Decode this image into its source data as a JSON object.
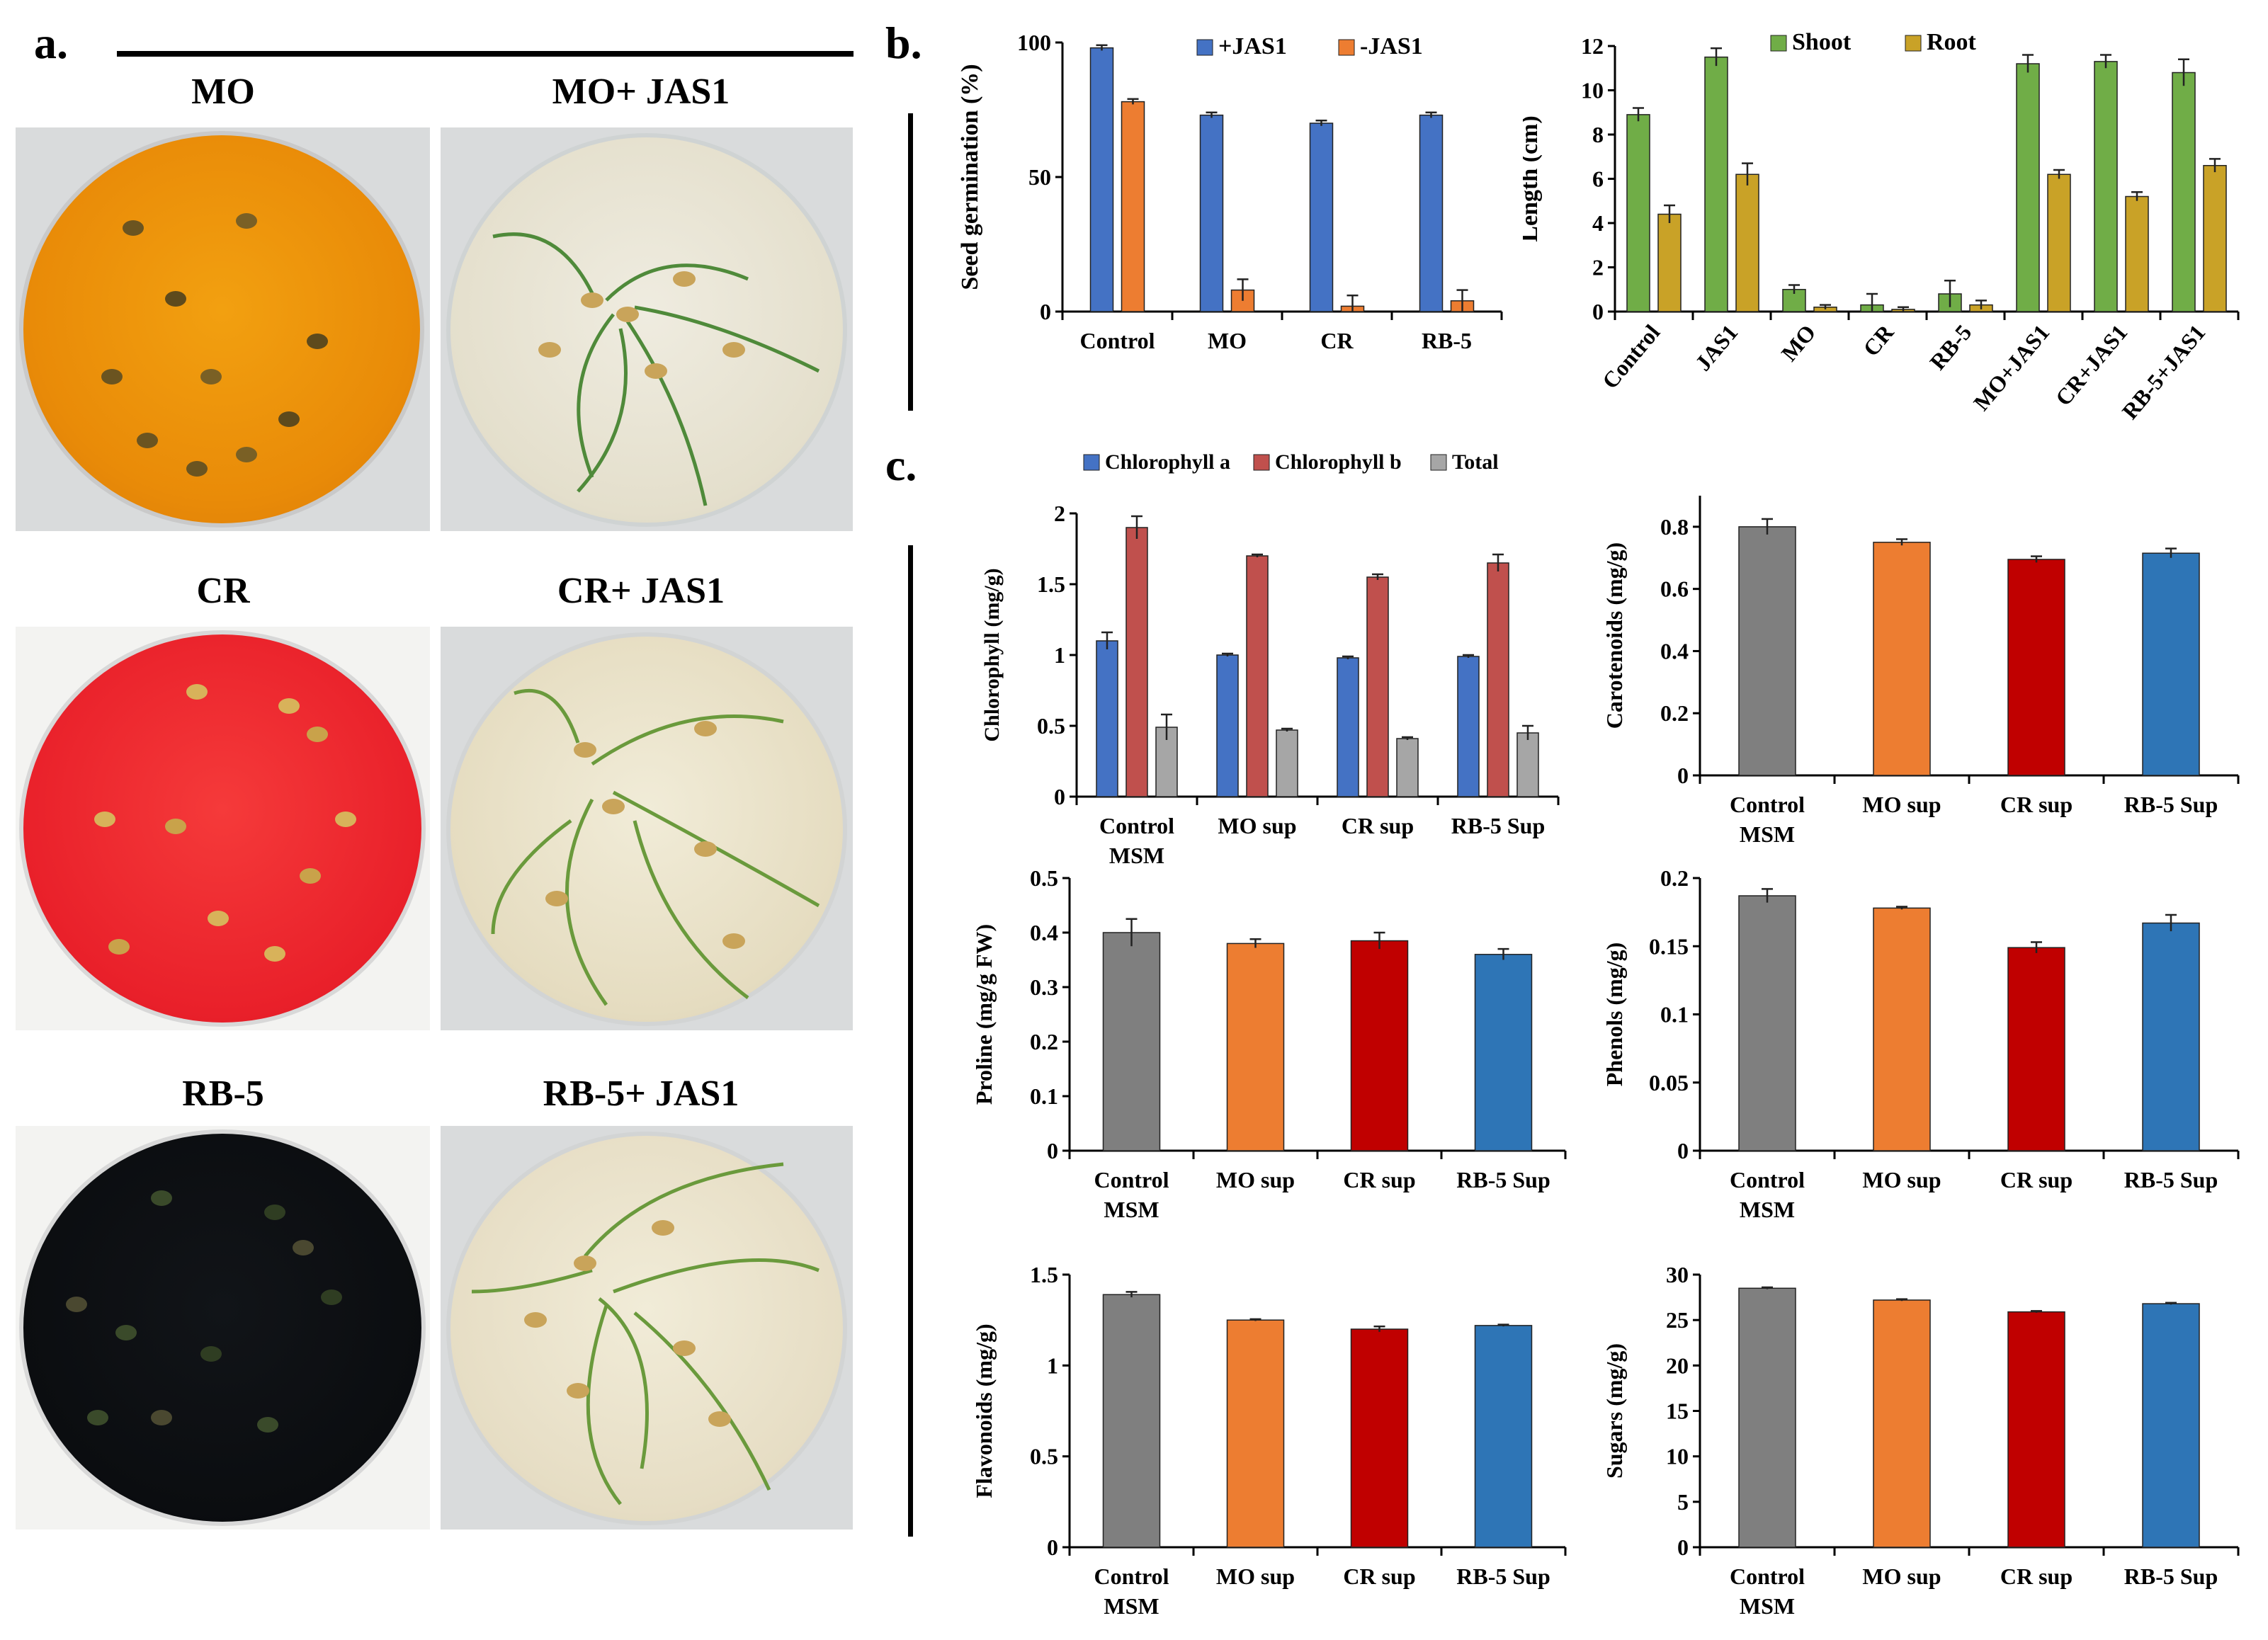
{
  "panel_a": {
    "letter": "a.",
    "labels": [
      "MO",
      "MO+ JAS1",
      "CR",
      "CR+ JAS1",
      "RB-5",
      "RB-5+ JAS1"
    ]
  },
  "panel_b": {
    "letter": "b."
  },
  "panel_c": {
    "letter": "c."
  },
  "colors": {
    "blue": "#4472c4",
    "orange": "#ed7d31",
    "green": "#70ad47",
    "gold": "#c9a227",
    "gray": "#7f7f7f",
    "red": "#c00000",
    "steelblue": "#2e75b6",
    "rose": "#c0504d",
    "silver": "#a6a6a6"
  },
  "chart_data": [
    {
      "id": "germination",
      "type": "bar",
      "ylabel": "Seed germination (%)",
      "ylim": [
        0,
        100
      ],
      "yticks": [
        "0",
        "50",
        "100"
      ],
      "categories": [
        "Control",
        "MO",
        "CR",
        "RB-5"
      ],
      "legend": "top",
      "series": [
        {
          "name": "+JAS1",
          "color": "#4472c4",
          "values": [
            98,
            73,
            70,
            73
          ],
          "errors": [
            1,
            1,
            1,
            1
          ]
        },
        {
          "name": "-JAS1",
          "color": "#ed7d31",
          "values": [
            78,
            8,
            2,
            4
          ],
          "errors": [
            1,
            4,
            4,
            4
          ]
        }
      ]
    },
    {
      "id": "length",
      "type": "bar",
      "ylabel": "Length (cm)",
      "ylim": [
        0,
        12
      ],
      "yticks": [
        "0",
        "2",
        "4",
        "6",
        "8",
        "10",
        "12"
      ],
      "categories": [
        "Control",
        "JAS1",
        "MO",
        "CR",
        "RB-5",
        "MO+JAS1",
        "CR+JAS1",
        "RB-5+JAS1"
      ],
      "legend": "top",
      "rotate_labels": true,
      "series": [
        {
          "name": "Shoot",
          "color": "#70ad47",
          "values": [
            8.9,
            11.5,
            1.0,
            0.3,
            0.8,
            11.2,
            11.3,
            10.8
          ],
          "errors": [
            0.3,
            0.4,
            0.2,
            0.5,
            0.6,
            0.4,
            0.3,
            0.6
          ]
        },
        {
          "name": "Root",
          "color": "#c9a227",
          "values": [
            4.4,
            6.2,
            0.2,
            0.1,
            0.3,
            6.2,
            5.2,
            6.6
          ],
          "errors": [
            0.4,
            0.5,
            0.1,
            0.1,
            0.2,
            0.2,
            0.2,
            0.3
          ]
        }
      ]
    },
    {
      "id": "chlorophyll",
      "type": "bar",
      "ylabel": "Chlorophyll (mg/g)",
      "ylim": [
        0,
        2
      ],
      "yticks": [
        "0",
        "0.5",
        "1",
        "1.5",
        "2"
      ],
      "categories": [
        "Control\nMSM",
        "MO sup",
        "CR sup",
        "RB-5 Sup"
      ],
      "legend": "top",
      "series": [
        {
          "name": "Chlorophyll a",
          "color": "#4472c4",
          "values": [
            1.1,
            1.0,
            0.98,
            0.99
          ],
          "errors": [
            0.06,
            0.01,
            0.01,
            0.01
          ]
        },
        {
          "name": "Chlorophyll b",
          "color": "#c0504d",
          "values": [
            1.9,
            1.7,
            1.55,
            1.65
          ],
          "errors": [
            0.08,
            0.01,
            0.02,
            0.06
          ]
        },
        {
          "name": "Total",
          "color": "#a6a6a6",
          "values": [
            0.49,
            0.47,
            0.41,
            0.45
          ],
          "errors": [
            0.09,
            0.01,
            0.01,
            0.05
          ]
        }
      ]
    },
    {
      "id": "carotenoids",
      "type": "bar",
      "ylabel": "Carotenoids (mg/g)",
      "ylim": [
        0,
        0.9
      ],
      "yticks": [
        "0",
        "0.2",
        "0.4",
        "0.6",
        "0.8"
      ],
      "categories": [
        "Control\nMSM",
        "MO sup",
        "CR sup",
        "RB-5 Sup"
      ],
      "values": [
        0.8,
        0.75,
        0.695,
        0.715
      ],
      "errors": [
        0.025,
        0.01,
        0.01,
        0.015
      ],
      "colors": [
        "#7f7f7f",
        "#ed7d31",
        "#c00000",
        "#2e75b6"
      ]
    },
    {
      "id": "proline",
      "type": "bar",
      "ylabel": "Proline (mg/g FW)",
      "ylim": [
        0,
        0.5
      ],
      "yticks": [
        "0",
        "0.1",
        "0.2",
        "0.3",
        "0.4",
        "0.5"
      ],
      "categories": [
        "Control\nMSM",
        "MO sup",
        "CR sup",
        "RB-5 Sup"
      ],
      "values": [
        0.4,
        0.38,
        0.385,
        0.36
      ],
      "errors": [
        0.025,
        0.008,
        0.015,
        0.01
      ],
      "colors": [
        "#7f7f7f",
        "#ed7d31",
        "#c00000",
        "#2e75b6"
      ]
    },
    {
      "id": "phenols",
      "type": "bar",
      "ylabel": "Phenols (mg/g)",
      "ylim": [
        0,
        0.2
      ],
      "yticks": [
        "0",
        "0.05",
        "0.1",
        "0.15",
        "0.2"
      ],
      "categories": [
        "Control\nMSM",
        "MO sup",
        "CR sup",
        "RB-5 Sup"
      ],
      "values": [
        0.187,
        0.178,
        0.149,
        0.167
      ],
      "errors": [
        0.005,
        0.001,
        0.004,
        0.006
      ],
      "colors": [
        "#7f7f7f",
        "#ed7d31",
        "#c00000",
        "#2e75b6"
      ]
    },
    {
      "id": "flavonoids",
      "type": "bar",
      "ylabel": "Flavonoids (mg/g)",
      "ylim": [
        0,
        1.5
      ],
      "yticks": [
        "0",
        "0.5",
        "1",
        "1.5"
      ],
      "categories": [
        "Control\nMSM",
        "MO sup",
        "CR sup",
        "RB-5 Sup"
      ],
      "values": [
        1.39,
        1.25,
        1.2,
        1.22
      ],
      "errors": [
        0.015,
        0.005,
        0.015,
        0.005
      ],
      "colors": [
        "#7f7f7f",
        "#ed7d31",
        "#c00000",
        "#2e75b6"
      ]
    },
    {
      "id": "sugars",
      "type": "bar",
      "ylabel": "Sugars (mg/g)",
      "ylim": [
        0,
        30
      ],
      "yticks": [
        "0",
        "5",
        "10",
        "15",
        "20",
        "25",
        "30"
      ],
      "categories": [
        "Control\nMSM",
        "MO sup",
        "CR sup",
        "RB-5 Sup"
      ],
      "values": [
        28.5,
        27.2,
        25.9,
        26.8
      ],
      "errors": [
        0.1,
        0.1,
        0.1,
        0.1
      ],
      "colors": [
        "#7f7f7f",
        "#ed7d31",
        "#c00000",
        "#2e75b6"
      ]
    }
  ]
}
